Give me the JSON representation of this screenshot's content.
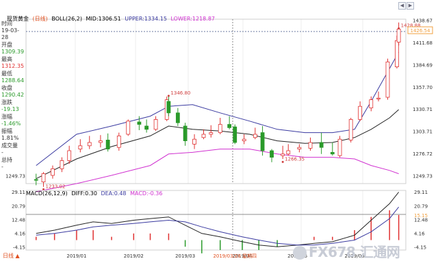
{
  "header": {
    "title": "现货黄金",
    "period": "(日线)",
    "boll": "BOLL(26,2)",
    "mid": "MID:1306.51",
    "upper": "UPPER:1334.15",
    "lower": "LOWER:1218.87"
  },
  "sidebar": {
    "time_label": "时间",
    "time_value": "19-03-28",
    "open_label": "开盘",
    "open_value": "1309.39",
    "high_label": "最高",
    "high_value": "1312.35",
    "low_label": "最低",
    "low_value": "1288.64",
    "close_label": "收盘",
    "close_value": "1290.42",
    "change_label": "涨跌",
    "change_value": "-19.13",
    "pct_label": "涨幅",
    "pct_value": "-1.46%",
    "amp_label": "振幅",
    "amp_value": "1.81%",
    "vol_label": "成交量",
    "vol_value": "-",
    "hold_label": "总持",
    "hold_value": "-"
  },
  "macd_header": {
    "macd": "MACD(26,12,9)",
    "diff": "DIFF:0.30",
    "dea": "DEA:0.48",
    "macdv": "MACD:-0.36"
  },
  "footer": {
    "period_button": "日线 ▲",
    "cursor_date": "2019/03/28 星期四"
  },
  "watermark": "FX678 汇通网",
  "nav": {
    "left": "◀",
    "right": "▶"
  },
  "colors": {
    "up": "#e03030",
    "down": "#2a9a2a",
    "mid": "#222222",
    "upper": "#3a3aa0",
    "lower": "#d030d0",
    "diff": "#222222",
    "dea": "#3a3aa0",
    "annot": "#d04040",
    "price_tag": "#f0a040"
  },
  "chart_data": [
    {
      "type": "candlestick",
      "title": "现货黄金(日线)",
      "x": [
        "2018-12-10",
        "2018-12-14",
        "2018-12-19",
        "2018-12-24",
        "2018-12-28",
        "2019-01-03",
        "2019-01-08",
        "2019-01-14",
        "2019-01-18",
        "2019-01-24",
        "2019-01-29",
        "2019-02-04",
        "2019-02-08",
        "2019-02-13",
        "2019-02-19",
        "2019-02-20",
        "2019-02-25",
        "2019-03-01",
        "2019-03-06",
        "2019-03-11",
        "2019-03-15",
        "2019-03-20",
        "2019-03-25",
        "2019-03-28",
        "2019-04-02",
        "2019-04-08",
        "2019-04-12",
        "2019-04-17",
        "2019-04-23",
        "2019-04-26",
        "2019-05-02",
        "2019-05-08",
        "2019-05-14",
        "2019-05-20",
        "2019-05-24",
        "2019-05-30",
        "2019-06-04",
        "2019-06-10",
        "2019-06-14",
        "2019-06-19",
        "2019-06-24",
        "2019-06-25"
      ],
      "open": [
        1245,
        1242,
        1250,
        1258,
        1268,
        1282,
        1286,
        1290,
        1293,
        1284,
        1300,
        1315,
        1310,
        1306,
        1318,
        1340,
        1326,
        1310,
        1288,
        1296,
        1300,
        1302,
        1312,
        1309,
        1292,
        1296,
        1302,
        1280,
        1274,
        1276,
        1282,
        1283,
        1290,
        1278,
        1274,
        1293,
        1318,
        1332,
        1343,
        1345,
        1382,
        1412
      ],
      "high": [
        1252,
        1254,
        1262,
        1272,
        1286,
        1294,
        1298,
        1299,
        1301,
        1302,
        1318,
        1322,
        1318,
        1322,
        1346,
        1346,
        1332,
        1314,
        1300,
        1306,
        1311,
        1320,
        1322,
        1312,
        1300,
        1308,
        1310,
        1282,
        1286,
        1288,
        1288,
        1296,
        1302,
        1290,
        1298,
        1320,
        1340,
        1346,
        1352,
        1392,
        1420,
        1436
      ],
      "low": [
        1238,
        1236,
        1246,
        1254,
        1264,
        1278,
        1282,
        1284,
        1279,
        1280,
        1298,
        1305,
        1302,
        1304,
        1316,
        1322,
        1310,
        1286,
        1282,
        1294,
        1296,
        1300,
        1306,
        1288,
        1288,
        1294,
        1274,
        1266,
        1270,
        1274,
        1278,
        1280,
        1276,
        1274,
        1272,
        1290,
        1316,
        1328,
        1340,
        1342,
        1380,
        1408
      ],
      "close": [
        1244,
        1252,
        1258,
        1268,
        1280,
        1286,
        1290,
        1292,
        1282,
        1298,
        1316,
        1312,
        1306,
        1318,
        1342,
        1326,
        1314,
        1292,
        1294,
        1300,
        1302,
        1312,
        1308,
        1290,
        1294,
        1300,
        1280,
        1272,
        1276,
        1280,
        1284,
        1290,
        1284,
        1276,
        1294,
        1318,
        1334,
        1342,
        1344,
        1388,
        1414,
        1428
      ],
      "annotations": [
        {
          "label": "1346.80",
          "x": "2019-02-20",
          "y": 1346.8
        },
        {
          "label": "1233.02",
          "x": "2018-12-14",
          "y": 1233.02
        },
        {
          "label": "1266.35",
          "x": "2019-04-23",
          "y": 1266.35
        },
        {
          "label": "1428.88",
          "x": "2019-06-25",
          "y": 1428.88
        }
      ],
      "last_price_tag": "1426.54",
      "ylim": [
        1240,
        1440
      ],
      "y_ticks": [
        "1438.67",
        "1411.68",
        "1384.69",
        "1357.70",
        "1330.71",
        "1303.71",
        "1276.72",
        "1249.73"
      ],
      "x_ticks": [
        "2019/01",
        "2019/02",
        "2019/03",
        "2019/04",
        "2019/05",
        "2019/06"
      ]
    },
    {
      "type": "line",
      "title": "BOLL(26,2)",
      "x": [
        "2018-12-10",
        "2019-01-01",
        "2019-01-20",
        "2019-02-10",
        "2019-02-20",
        "2019-03-05",
        "2019-03-20",
        "2019-04-05",
        "2019-04-20",
        "2019-05-05",
        "2019-05-20",
        "2019-06-01",
        "2019-06-10",
        "2019-06-20",
        "2019-06-25"
      ],
      "series": [
        {
          "name": "MID",
          "values": [
            1246,
            1270,
            1285,
            1298,
            1310,
            1306,
            1304,
            1300,
            1292,
            1289,
            1290,
            1296,
            1306,
            1320,
            1330
          ]
        },
        {
          "name": "UPPER",
          "values": [
            1262,
            1300,
            1310,
            1322,
            1334,
            1336,
            1326,
            1316,
            1306,
            1302,
            1302,
            1306,
            1340,
            1380,
            1400
          ]
        },
        {
          "name": "LOWER",
          "values": [
            1230,
            1240,
            1250,
            1262,
            1276,
            1278,
            1282,
            1282,
            1276,
            1272,
            1272,
            1270,
            1262,
            1256,
            1252
          ]
        }
      ]
    },
    {
      "type": "bar",
      "title": "MACD(26,12,9)",
      "x": [
        "2018-12-10",
        "2018-12-20",
        "2019-01-01",
        "2019-01-10",
        "2019-01-20",
        "2019-02-01",
        "2019-02-10",
        "2019-02-20",
        "2019-03-01",
        "2019-03-10",
        "2019-03-20",
        "2019-04-01",
        "2019-04-10",
        "2019-04-20",
        "2019-05-01",
        "2019-05-10",
        "2019-05-20",
        "2019-06-01",
        "2019-06-10",
        "2019-06-20",
        "2019-06-25"
      ],
      "series": [
        {
          "name": "DIFF",
          "values": [
            4,
            6,
            9,
            11,
            10,
            12,
            13,
            14,
            9,
            4,
            2,
            -1,
            -3,
            -4,
            -3,
            -2,
            -1,
            3,
            12,
            22,
            29
          ]
        },
        {
          "name": "DEA",
          "values": [
            3,
            4,
            6,
            8,
            9,
            10,
            11,
            12,
            11,
            8,
            5,
            2,
            0,
            -2,
            -3,
            -3,
            -2,
            0,
            5,
            13,
            20
          ]
        },
        {
          "name": "MACD",
          "values": [
            2,
            4,
            6,
            6,
            2,
            4,
            4,
            4,
            -4,
            -8,
            -6,
            -6,
            -6,
            -4,
            0,
            2,
            2,
            6,
            14,
            18,
            15.15
          ]
        }
      ],
      "ylim": [
        -6,
        30
      ],
      "y_ticks": [
        "29.11",
        "20.79",
        "12.48",
        "4.16",
        "-4.15"
      ],
      "right_tag": "15.15"
    }
  ]
}
